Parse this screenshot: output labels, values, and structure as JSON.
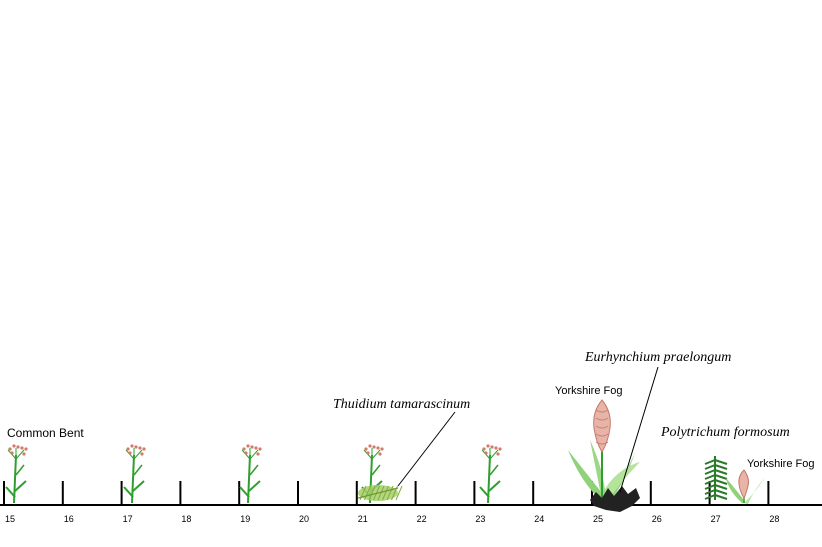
{
  "transect": {
    "ticks": [
      "15",
      "16",
      "17",
      "18",
      "19",
      "20",
      "21",
      "22",
      "23",
      "24",
      "25",
      "26",
      "27",
      "28"
    ],
    "colors": {
      "line": "#000000",
      "grass_stem": "#2e9e2e",
      "flower_head": "#d47a6a",
      "moss_light": "#a8cf6a",
      "fern_dark": "#2a7a2a",
      "fog_head": "#e8b4a8",
      "fog_leaf": "#8fd27a",
      "moss_dark": "#222222"
    }
  },
  "labels": {
    "common_bent": "Common Bent",
    "thuidium": "Thuidium tamarascinum",
    "eurhynchium": "Eurhynchium praelongum",
    "yorkshire_fog_1": "Yorkshire Fog",
    "polytrichum": "Polytrichum formosum",
    "yorkshire_fog_2": "Yorkshire Fog"
  },
  "plants": {
    "common_bent_count": 5
  }
}
